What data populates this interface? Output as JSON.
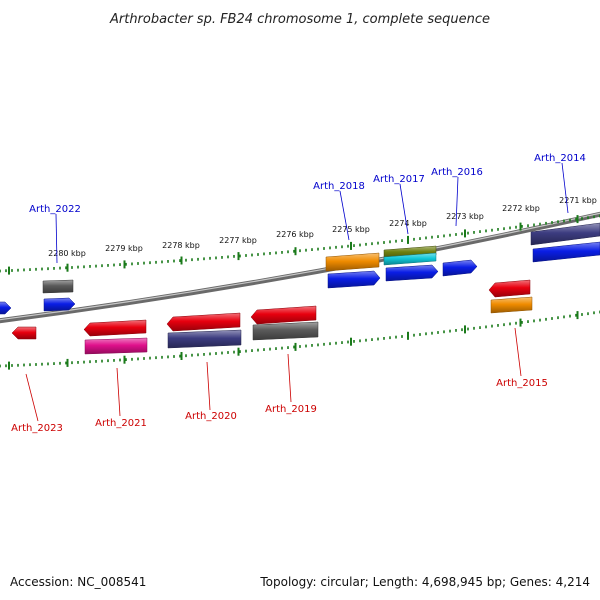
{
  "title": "Arthrobacter sp. FB24 chromosome 1, complete sequence",
  "footer": {
    "accession": "Accession: NC_008541",
    "summary": "Topology: circular; Length: 4,698,945 bp; Genes: 4,214"
  },
  "ticks": [
    "2271 kbp",
    "2272 kbp",
    "2273 kbp",
    "2274 kbp",
    "2275 kbp",
    "2276 kbp",
    "2277 kbp",
    "2278 kbp",
    "2279 kbp",
    "2280 kbp"
  ],
  "genes_forward": [
    "Arth_2014",
    "Arth_2016",
    "Arth_2017",
    "Arth_2018",
    "Arth_2022"
  ],
  "genes_reverse": [
    "Arth_2015",
    "Arth_2019",
    "Arth_2020",
    "Arth_2021",
    "Arth_2023"
  ],
  "colors": {
    "red": "#e8000f",
    "blue": "#0a1ee6",
    "orange": "#f08c00",
    "gray": "#5a5a5a",
    "slate": "#3c3c80",
    "magenta": "#e0108c",
    "olive": "#6e8010",
    "cyan": "#10c8d8",
    "tick_green": "#1a7a1a",
    "label_forward": "#0000cc",
    "label_reverse": "#cc0000"
  }
}
